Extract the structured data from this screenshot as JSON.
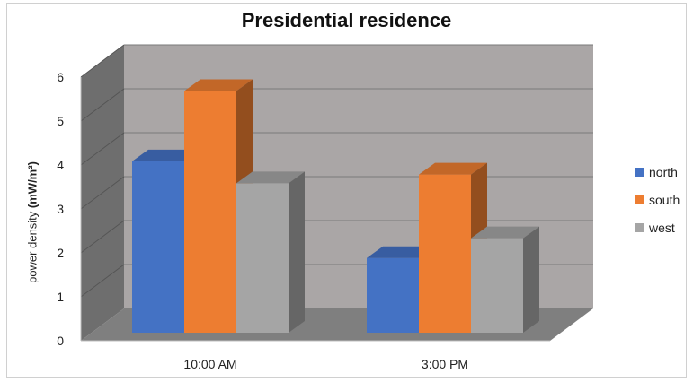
{
  "chart_data": {
    "type": "bar",
    "title": "Presidential residence",
    "ylabel": "power density (mW/m²)",
    "ylabel_prefix": "power density ",
    "ylabel_unit": "(mW/m²)",
    "categories": [
      "10:00 AM",
      "3:00 PM"
    ],
    "series": [
      {
        "name": "north",
        "values": [
          3.9,
          1.7
        ],
        "color": "#4472c4"
      },
      {
        "name": "south",
        "values": [
          5.5,
          3.6
        ],
        "color": "#ed7d31"
      },
      {
        "name": "west",
        "values": [
          3.4,
          2.15
        ],
        "color": "#a5a5a5"
      }
    ],
    "ylim": [
      0,
      6
    ],
    "yticks": [
      0,
      1,
      2,
      3,
      4,
      5,
      6
    ],
    "grid": true,
    "legend": "right",
    "style": "3d-clustered-column"
  }
}
